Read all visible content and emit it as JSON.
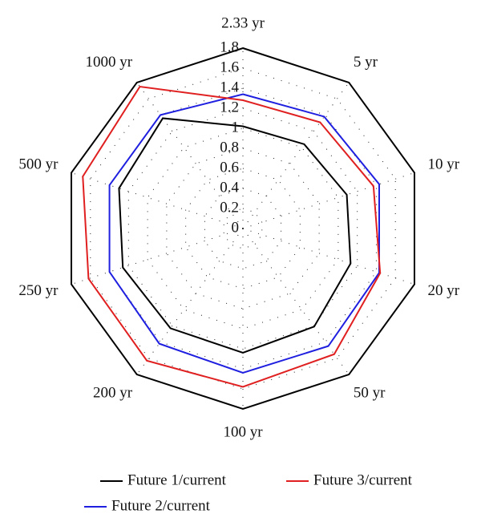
{
  "chart_data": {
    "type": "radar",
    "categories": [
      "2.33 yr",
      "5 yr",
      "10 yr",
      "20 yr",
      "50 yr",
      "100 yr",
      "200 yr",
      "250 yr",
      "500 yr",
      "1000 yr"
    ],
    "series": [
      {
        "name": "Future 1/current",
        "color": "#000000",
        "values": [
          1.02,
          1.04,
          1.09,
          1.13,
          1.21,
          1.24,
          1.23,
          1.26,
          1.3,
          1.36
        ]
      },
      {
        "name": "Future 2/current",
        "color": "#1f1fe0",
        "values": [
          1.34,
          1.38,
          1.43,
          1.43,
          1.45,
          1.44,
          1.42,
          1.4,
          1.4,
          1.4
        ]
      },
      {
        "name": "Future 3/current",
        "color": "#e02020",
        "values": [
          1.28,
          1.31,
          1.37,
          1.44,
          1.55,
          1.58,
          1.63,
          1.62,
          1.68,
          1.75
        ]
      }
    ],
    "rlim": [
      0,
      1.8
    ],
    "rticks": [
      0,
      0.2,
      0.4,
      0.6,
      0.8,
      1,
      1.2,
      1.4,
      1.6,
      1.8
    ],
    "grid": true
  }
}
